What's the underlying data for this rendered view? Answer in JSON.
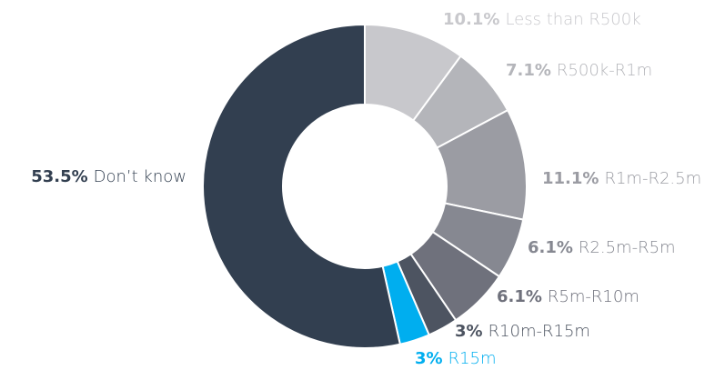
{
  "chart_data": {
    "type": "donut",
    "categories": [
      "Less than R500k",
      "R500k-R1m",
      "R1m-R2.5m",
      "R2.5m-R5m",
      "R5m-R10m",
      "R10m-R15m",
      "R15m",
      "Don’t know"
    ],
    "values": [
      10.1,
      7.1,
      11.1,
      6.1,
      6.1,
      3,
      3,
      53.5
    ],
    "value_labels": [
      "10.1%",
      "7.1%",
      "11.1%",
      "6.1%",
      "6.1%",
      "3%",
      "3%",
      "53.5%"
    ],
    "colors": [
      "#c8c8cc",
      "#b4b5ba",
      "#9b9ca3",
      "#868891",
      "#6f717c",
      "#4d5461",
      "#00aeef",
      "#323f50"
    ]
  }
}
